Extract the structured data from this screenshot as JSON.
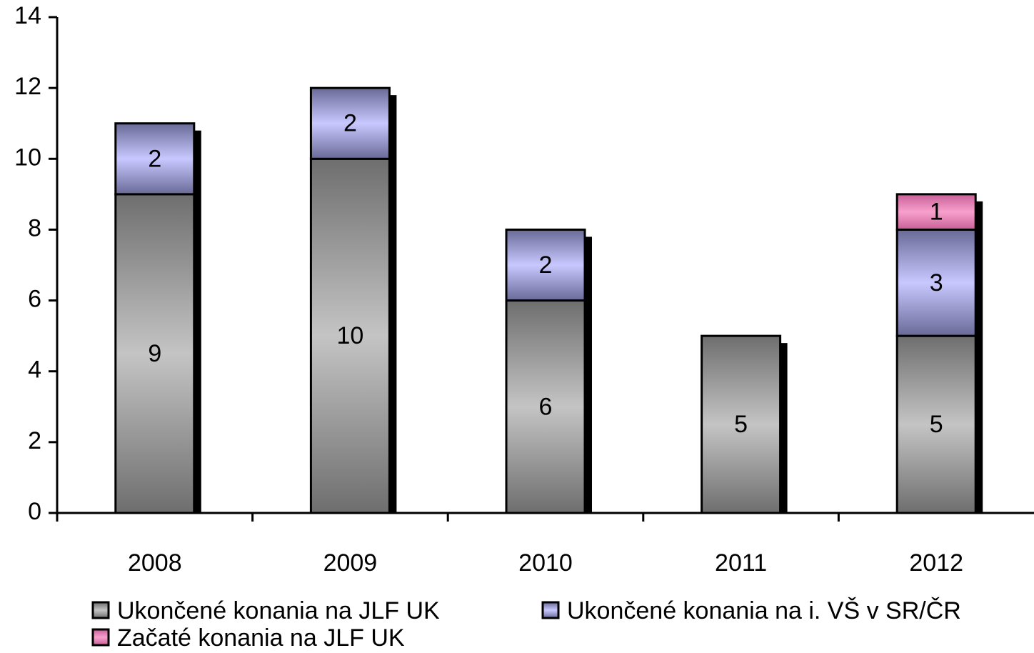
{
  "chart_data": {
    "type": "stacked_bar",
    "categories": [
      "2008",
      "2009",
      "2010",
      "2011",
      "2012"
    ],
    "series": [
      {
        "name": "Ukončené konania na JLF UK",
        "color": "#a0a0a0",
        "values": [
          9,
          10,
          6,
          5,
          5
        ]
      },
      {
        "name": "Ukončené konania na i. VŠ v SR/ČR",
        "color": "#c0c0f8",
        "values": [
          2,
          2,
          2,
          null,
          3
        ]
      },
      {
        "name": "Začaté konania na JLF UK",
        "color": "#f080b8",
        "values": [
          null,
          null,
          null,
          null,
          1
        ]
      }
    ],
    "ylim": [
      0,
      14
    ],
    "yticks": [
      0,
      2,
      4,
      6,
      8,
      10,
      12,
      14
    ],
    "grid": false,
    "legend": "bottom"
  }
}
